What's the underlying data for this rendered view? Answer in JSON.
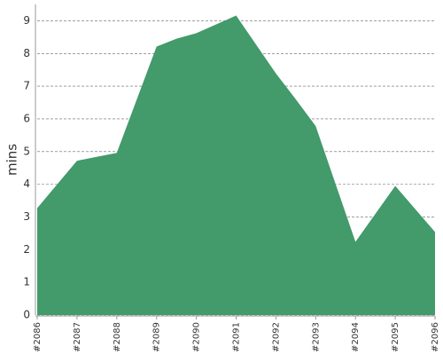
{
  "chart_data": {
    "type": "area",
    "ylabel": "mins",
    "x": [
      2086,
      2087,
      2088,
      2089,
      2089.5,
      2090,
      2091,
      2092,
      2092.5,
      2093,
      2094,
      2095,
      2096
    ],
    "values": [
      3.27,
      4.72,
      4.96,
      8.21,
      8.45,
      8.62,
      9.16,
      7.39,
      6.6,
      5.78,
      2.24,
      3.95,
      2.54
    ],
    "color": "#439a6a",
    "xlim": [
      2086,
      2096
    ],
    "xticks": [
      {
        "value": 2086,
        "label": "#2086"
      },
      {
        "value": 2087,
        "label": "#2087"
      },
      {
        "value": 2088,
        "label": "#2088"
      },
      {
        "value": 2089,
        "label": "#2089"
      },
      {
        "value": 2090,
        "label": "#2090"
      },
      {
        "value": 2091,
        "label": "#2091"
      },
      {
        "value": 2092,
        "label": "#2092"
      },
      {
        "value": 2093,
        "label": "#2093"
      },
      {
        "value": 2094,
        "label": "#2094"
      },
      {
        "value": 2095,
        "label": "#2095"
      },
      {
        "value": 2096,
        "label": "#2096"
      }
    ],
    "ylim": [
      0,
      9.5
    ],
    "yticks": [
      0,
      1,
      2,
      3,
      4,
      5,
      6,
      7,
      8,
      9
    ],
    "grid": true
  }
}
